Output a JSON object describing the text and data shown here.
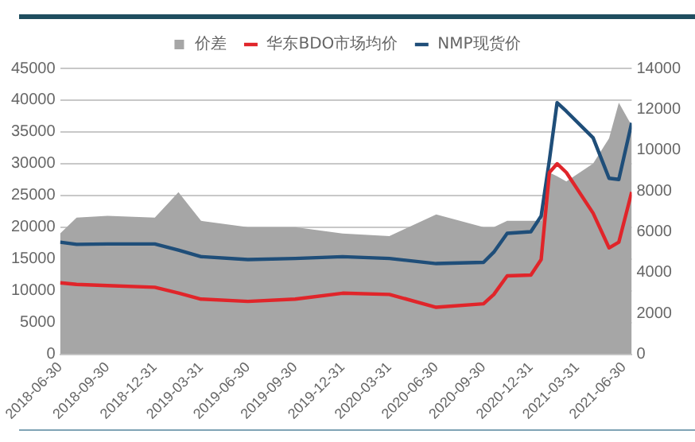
{
  "chart_data": {
    "type": "line",
    "x": [
      "2018-06-30",
      "2018-08-01",
      "2018-09-30",
      "2018-12-31",
      "2019-02-15",
      "2019-03-31",
      "2019-06-30",
      "2019-09-30",
      "2019-12-31",
      "2020-03-31",
      "2020-06-30",
      "2020-09-30",
      "2020-10-20",
      "2020-11-15",
      "2020-12-31",
      "2021-01-20",
      "2021-02-05",
      "2021-02-20",
      "2021-03-10",
      "2021-05-01",
      "2021-06-01",
      "2021-06-20",
      "2021-07-15"
    ],
    "series": [
      {
        "name": "价差",
        "type": "area",
        "color": "#a6a6a6",
        "values": [
          19000,
          21500,
          21800,
          21500,
          25500,
          21000,
          20000,
          20000,
          19000,
          18600,
          22000,
          20000,
          20000,
          21000,
          21000,
          21000,
          28600,
          28000,
          27200,
          30000,
          34000,
          39600,
          36000
        ]
      },
      {
        "name": "华东BDO市场均价",
        "type": "line",
        "axis": "y2",
        "color": "#e0252a",
        "values": [
          3500,
          3420,
          3360,
          3280,
          3000,
          2700,
          2590,
          2700,
          2990,
          2930,
          2300,
          2470,
          2930,
          3840,
          3880,
          4640,
          8900,
          9330,
          8900,
          6910,
          5210,
          5490,
          7940
        ]
      },
      {
        "name": "NMP现货价",
        "type": "line",
        "axis": "y2",
        "color": "#1f4e79",
        "values": [
          5490,
          5380,
          5400,
          5400,
          5100,
          4780,
          4640,
          4690,
          4780,
          4690,
          4440,
          4500,
          5000,
          5920,
          6000,
          6770,
          9500,
          12320,
          11900,
          10600,
          8620,
          8560,
          11330
        ]
      }
    ],
    "xlim": [
      "2018-06-30",
      "2021-07-15"
    ],
    "xticks": [
      "2018-06-30",
      "2018-09-30",
      "2018-12-31",
      "2019-03-31",
      "2019-06-30",
      "2019-09-30",
      "2019-12-31",
      "2020-03-31",
      "2020-06-30",
      "2020-09-30",
      "2020-12-31",
      "2021-03-31",
      "2021-06-30"
    ],
    "ylim": [
      0,
      45000
    ],
    "yticks": [
      0,
      5000,
      10000,
      15000,
      20000,
      25000,
      30000,
      35000,
      40000,
      45000
    ],
    "y2lim": [
      0,
      14000
    ],
    "y2ticks": [
      0,
      2000,
      4000,
      6000,
      8000,
      10000,
      12000,
      14000
    ],
    "grid": "y",
    "legend": "top",
    "marker": "none"
  }
}
